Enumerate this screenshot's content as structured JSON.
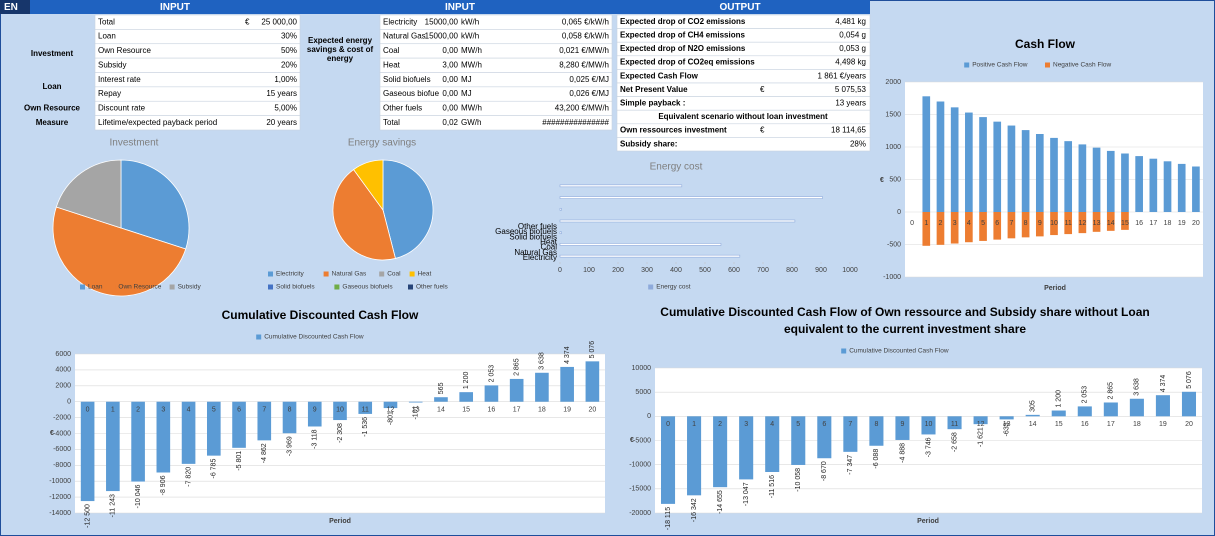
{
  "header": {
    "lang": "EN",
    "sections": [
      "INPUT",
      "INPUT",
      "OUTPUT"
    ]
  },
  "investment_table": {
    "groups": [
      "Investment",
      "Loan",
      "Own Resource",
      "Measure"
    ],
    "rows": [
      [
        "Total",
        "€",
        "25 000,00"
      ],
      [
        "Loan",
        "30%"
      ],
      [
        "Own Resource",
        "50%"
      ],
      [
        "Subsidy",
        "20%"
      ],
      [
        "Interest rate",
        "1,00%"
      ],
      [
        "Repay",
        "15 years"
      ],
      [
        "Discount rate",
        "5,00%"
      ],
      [
        "Lifetime/expected payback period",
        "20 years"
      ]
    ]
  },
  "energy_table": {
    "label": "Expected energy savings & cost of energy",
    "rows": [
      [
        "Electricity",
        "15000,00",
        "kW/h",
        "0,065 €/kW/h"
      ],
      [
        "Natural Gas",
        "15000,00",
        "kW/h",
        "0,058 €/kW/h"
      ],
      [
        "Coal",
        "0,00",
        "MW/h",
        "0,021 €/MW/h"
      ],
      [
        "Heat",
        "3,00",
        "MW/h",
        "8,280 €/MW/h"
      ],
      [
        "Solid biofuels",
        "0,00",
        "MJ",
        "0,025 €/MJ"
      ],
      [
        "Gaseous biofue",
        "0,00",
        "MJ",
        "0,026 €/MJ"
      ],
      [
        "Other fuels",
        "0,00",
        "MW/h",
        "43,200 €/MW/h"
      ],
      [
        "Total",
        "0,02",
        "GW/h",
        "###############"
      ]
    ]
  },
  "output_table": {
    "side_label": "OUTPUT",
    "rows": [
      [
        "Expected drop of CO2 emissions",
        "4,481 kg"
      ],
      [
        "Expected drop of CH4 emissions",
        "0,054 g"
      ],
      [
        "Expected drop of N2O emissions",
        "0,053 g"
      ],
      [
        "Expected drop of CO2eq emissions",
        "4,498 kg"
      ],
      [
        "Expected Cash Flow",
        "1 861 €/years"
      ],
      [
        "Net Present Value",
        "€",
        "5 075,53"
      ],
      [
        "Simple payback :",
        "13 years"
      ],
      [
        "Equivalent scenario without loan investment"
      ],
      [
        "Own ressources investment",
        "€",
        "18 114,65"
      ],
      [
        "Subsidy share:",
        "28%"
      ]
    ]
  },
  "chart_data": [
    {
      "type": "pie",
      "title": "Investment",
      "categories": [
        "Loan",
        "Own Resource",
        "Subsidy"
      ],
      "values": [
        30,
        50,
        20
      ],
      "colors": [
        "#5b9bd5",
        "#ed7d31",
        "#a5a5a5"
      ]
    },
    {
      "type": "pie",
      "title": "Energy savings",
      "categories": [
        "Electricity",
        "Natural Gas",
        "Coal",
        "Heat",
        "Solid biofuels",
        "Gaseous biofuels",
        "Other fuels"
      ],
      "values": [
        46,
        44,
        0,
        10,
        0,
        0,
        0
      ],
      "colors": [
        "#5b9bd5",
        "#ed7d31",
        "#a5a5a5",
        "#ffc000",
        "#4472c4",
        "#70ad47",
        "#264478"
      ]
    },
    {
      "type": "hbar",
      "title": "Energy cost",
      "categories": [
        "Electricity",
        "Natural Gas",
        "Coal",
        "Heat",
        "Solid biofuels",
        "Gaseous biofuels",
        "Other fuels"
      ],
      "series": [
        {
          "name": "Energy cost",
          "color": "#8eaadb",
          "values": [
            620,
            555,
            5,
            810,
            5,
            905,
            420
          ]
        }
      ],
      "xlim": [
        0,
        1000
      ],
      "xticks": [
        0,
        100,
        200,
        300,
        400,
        500,
        600,
        700,
        800,
        900,
        1000
      ]
    },
    {
      "type": "bar",
      "title": "Cash Flow",
      "xlabel": "Period",
      "ylabel": "€",
      "grid": true,
      "categories": [
        "0",
        "1",
        "2",
        "3",
        "4",
        "5",
        "6",
        "7",
        "8",
        "9",
        "10",
        "11",
        "12",
        "13",
        "14",
        "15",
        "16",
        "17",
        "18",
        "19",
        "20"
      ],
      "series": [
        {
          "name": "Positive Cash Flow",
          "color": "#5b9bd5",
          "values": [
            0,
            1780,
            1700,
            1610,
            1530,
            1460,
            1390,
            1330,
            1260,
            1200,
            1140,
            1090,
            1040,
            990,
            940,
            900,
            860,
            820,
            780,
            740,
            700
          ]
        },
        {
          "name": "Negative Cash Flow",
          "color": "#ed7d31",
          "values": [
            0,
            -520,
            -505,
            -485,
            -465,
            -445,
            -425,
            -405,
            -390,
            -375,
            -355,
            -340,
            -325,
            -305,
            -290,
            -275,
            0,
            0,
            0,
            0,
            0
          ]
        }
      ],
      "ylim": [
        -1000,
        2000
      ],
      "yticks": [
        -1000,
        -500,
        0,
        500,
        1000,
        1500,
        2000
      ]
    },
    {
      "type": "bar",
      "title": [
        "Cumulative Discounted Cash Flow"
      ],
      "xlabel": "Period",
      "ylabel": "€",
      "grid": true,
      "categories": [
        "0",
        "1",
        "2",
        "3",
        "4",
        "5",
        "6",
        "7",
        "8",
        "9",
        "10",
        "11",
        "12",
        "13",
        "14",
        "15",
        "16",
        "17",
        "18",
        "19",
        "20"
      ],
      "series": [
        {
          "name": "Cumulative Discounted Cash Flow",
          "color": "#5b9bd5",
          "values": [
            -12500,
            -11243,
            -10046,
            -8906,
            -7820,
            -6785,
            -5801,
            -4862,
            -3969,
            -3118,
            -2308,
            -1536,
            -801,
            -101,
            565,
            1200,
            2053,
            2865,
            3638,
            4374,
            5076
          ],
          "value_labels": [
            "-12 500",
            "-11 243",
            "-10 046",
            "-8 906",
            "-7 820",
            "-6 785",
            "-5 801",
            "-4 862",
            "-3 969",
            "-3 118",
            "-2 308",
            "-1 536",
            "-801",
            "-101",
            "565",
            "1 200",
            "2 053",
            "2 865",
            "3 638",
            "4 374",
            "5 076"
          ]
        }
      ],
      "ylim": [
        -14000,
        6000
      ],
      "yticks": [
        -14000,
        -12000,
        -10000,
        -8000,
        -6000,
        -4000,
        -2000,
        0,
        2000,
        4000,
        6000
      ]
    },
    {
      "type": "bar",
      "title": [
        "Cumulative Discounted Cash Flow of Own ressource and Subsidy share without Loan",
        "equivalent to the current investment share"
      ],
      "xlabel": "Period",
      "ylabel": "€",
      "grid": true,
      "categories": [
        "0",
        "1",
        "2",
        "3",
        "4",
        "5",
        "6",
        "7",
        "8",
        "9",
        "10",
        "11",
        "12",
        "13",
        "14",
        "15",
        "16",
        "17",
        "18",
        "19",
        "20"
      ],
      "series": [
        {
          "name": "Cumulative Discounted Cash Flow",
          "color": "#5b9bd5",
          "values": [
            -18115,
            -16342,
            -14655,
            -13047,
            -11516,
            -10058,
            -8670,
            -7347,
            -6088,
            -4888,
            -3746,
            -2658,
            -1621,
            -633,
            305,
            1200,
            2053,
            2865,
            3638,
            4374,
            5076
          ],
          "value_labels": [
            "-18 115",
            "-16 342",
            "-14 655",
            "-13 047",
            "-11 516",
            "-10 058",
            "-8 670",
            "-7 347",
            "-6 088",
            "-4 888",
            "-3 746",
            "-2 658",
            "-1 621",
            "-633",
            "305",
            "1 200",
            "2 053",
            "2 865",
            "3 638",
            "4 374",
            "5 076"
          ]
        }
      ],
      "ylim": [
        -20000,
        10000
      ],
      "yticks": [
        -20000,
        -15000,
        -10000,
        -5000,
        0,
        5000,
        10000
      ]
    }
  ]
}
